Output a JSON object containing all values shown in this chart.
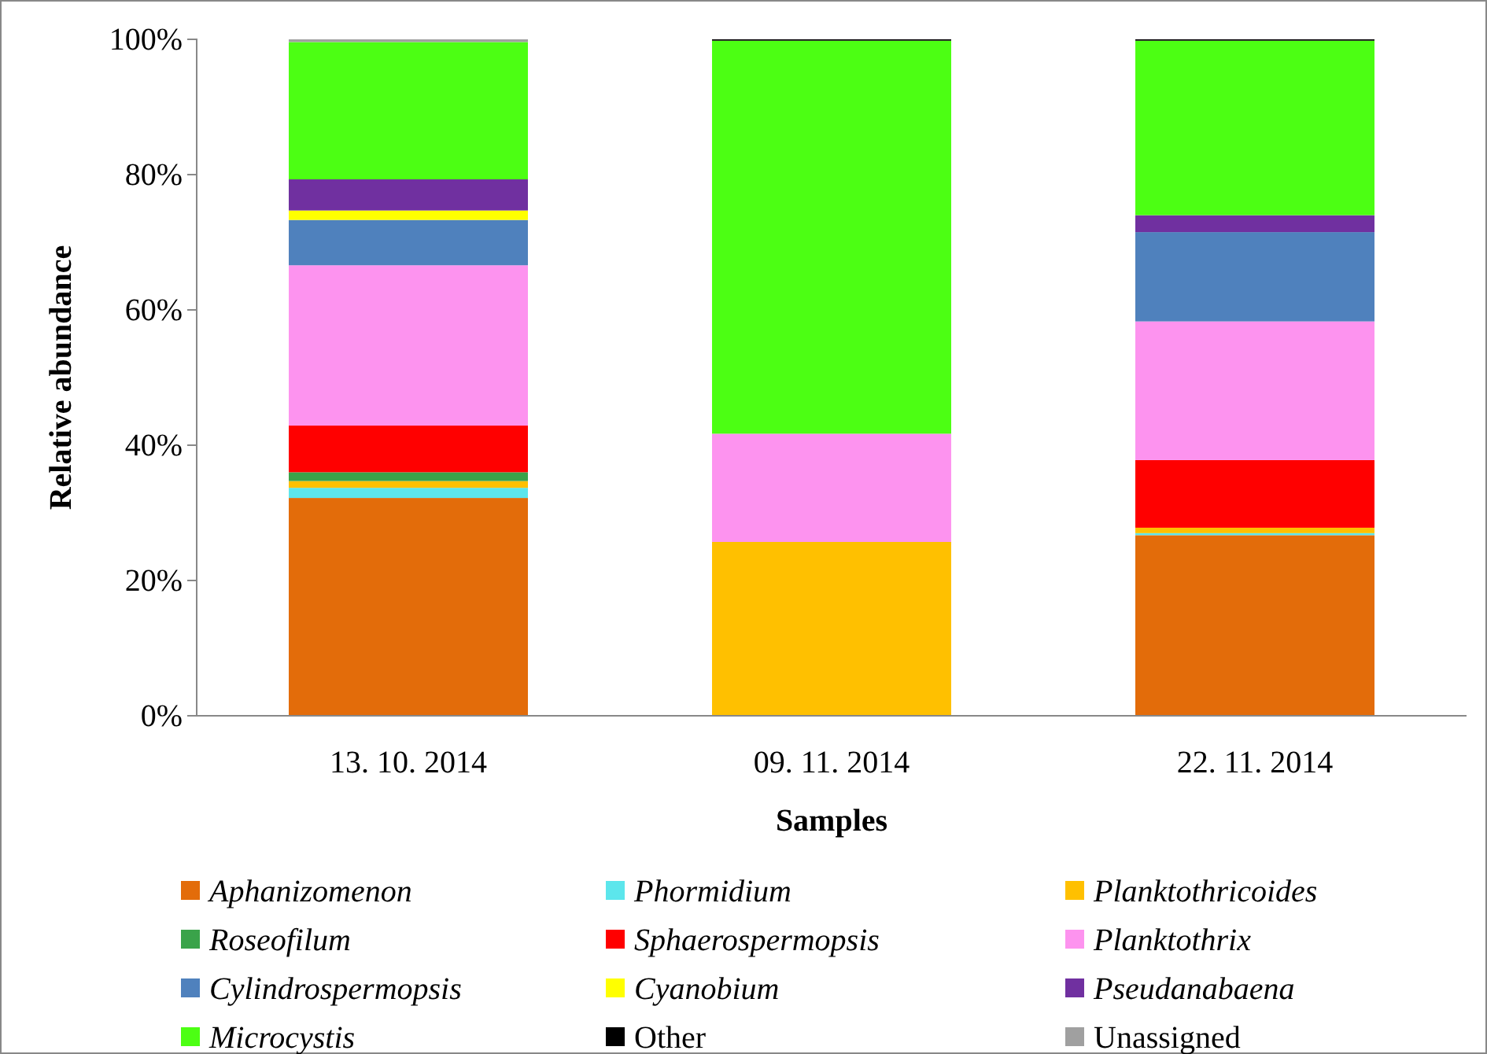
{
  "chart_data": {
    "type": "bar",
    "stacked": true,
    "xlabel": "Samples",
    "ylabel": "Relative abundance",
    "categories": [
      "13. 10. 2014",
      "09. 11. 2014",
      "22. 11. 2014"
    ],
    "ylim": [
      0,
      100
    ],
    "yticks": [
      {
        "value": 0,
        "label": "0%"
      },
      {
        "value": 20,
        "label": "20%"
      },
      {
        "value": 40,
        "label": "40%"
      },
      {
        "value": 60,
        "label": "60%"
      },
      {
        "value": 80,
        "label": "80%"
      },
      {
        "value": 100,
        "label": "100%"
      }
    ],
    "grid": false,
    "legend": "bottom",
    "series": [
      {
        "name": "Aphanizomenon",
        "color": "#e36c0a",
        "values": [
          32.2,
          0,
          26.7
        ]
      },
      {
        "name": "Phormidium",
        "color": "#5ce6ec",
        "values": [
          1.5,
          0,
          0.3
        ]
      },
      {
        "name": "Planktothricoides",
        "color": "#ffc000",
        "values": [
          1.0,
          25.7,
          0.8
        ]
      },
      {
        "name": "Roseofilum",
        "color": "#3aa34a",
        "values": [
          1.3,
          0,
          0
        ]
      },
      {
        "name": "Sphaerospermopsis",
        "color": "#ff0000",
        "values": [
          6.9,
          0,
          10.0
        ]
      },
      {
        "name": "Planktothrix",
        "color": "#fd93ef",
        "values": [
          23.7,
          16.0,
          20.5
        ]
      },
      {
        "name": "Cylindrospermopsis",
        "color": "#4f81bd",
        "values": [
          6.7,
          0,
          13.2
        ]
      },
      {
        "name": "Cyanobium",
        "color": "#ffff00",
        "values": [
          1.4,
          0,
          0
        ]
      },
      {
        "name": "Pseudanabaena",
        "color": "#7030a0",
        "values": [
          4.6,
          0,
          2.5
        ]
      },
      {
        "name": "Microcystis",
        "color": "#4cff13",
        "values": [
          20.3,
          58.1,
          25.8
        ]
      },
      {
        "name": "Other",
        "color": "#000000",
        "values": [
          0,
          0.2,
          0.2
        ]
      },
      {
        "name": "Unassigned",
        "color": "#a0a0a0",
        "values": [
          0.4,
          0,
          0
        ]
      }
    ]
  }
}
